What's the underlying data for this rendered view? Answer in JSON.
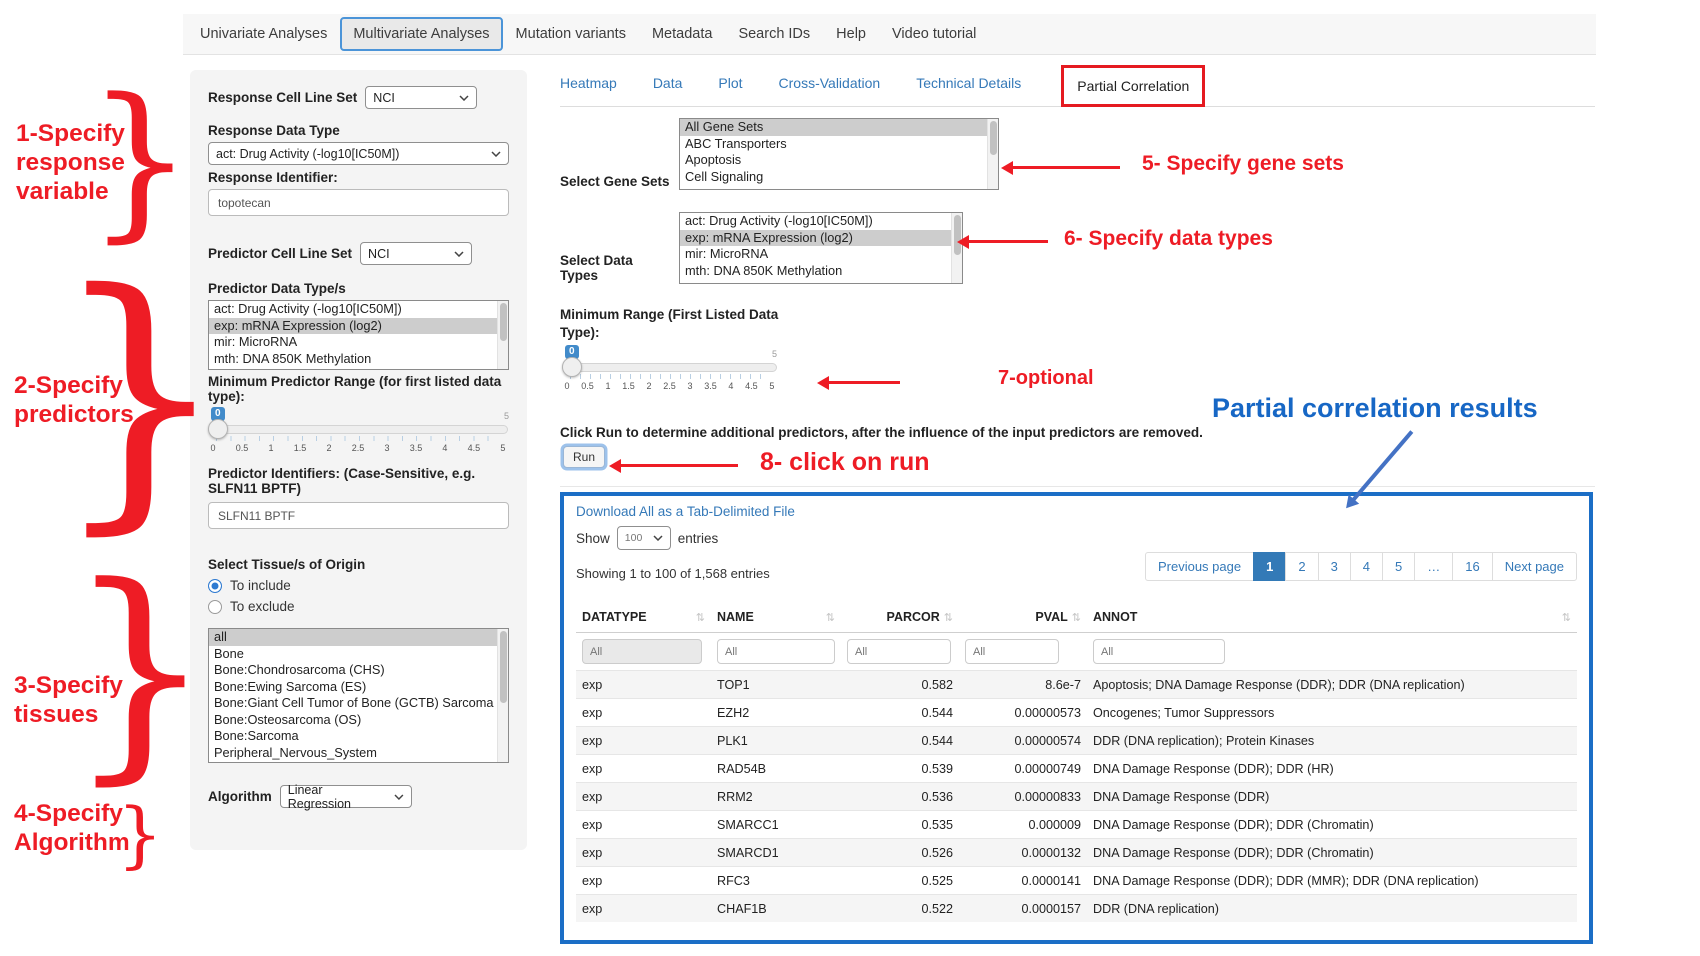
{
  "topnav": {
    "items": [
      {
        "label": "Univariate Analyses",
        "active": false
      },
      {
        "label": "Multivariate Analyses",
        "active": true
      },
      {
        "label": "Mutation variants",
        "active": false
      },
      {
        "label": "Metadata",
        "active": false
      },
      {
        "label": "Search IDs",
        "active": false
      },
      {
        "label": "Help",
        "active": false
      },
      {
        "label": "Video tutorial",
        "active": false
      }
    ]
  },
  "slider_ticks": [
    "0",
    "0.5",
    "1",
    "1.5",
    "2",
    "2.5",
    "3",
    "3.5",
    "4",
    "4.5",
    "5"
  ],
  "sidebar": {
    "response_cell_line_set_label": "Response Cell Line Set",
    "response_cell_line_set_value": "NCI",
    "response_data_type_label": "Response Data Type",
    "response_data_type_value": "act: Drug Activity (-log10[IC50M])",
    "response_identifier_label": "Response Identifier:",
    "response_identifier_value": "topotecan",
    "predictor_cell_line_set_label": "Predictor Cell Line Set",
    "predictor_cell_line_set_value": "NCI",
    "predictor_data_types_label": "Predictor Data Type/s",
    "predictor_data_types_options": [
      "act: Drug Activity (-log10[IC50M])",
      "exp: mRNA Expression (log2)",
      "mir: MicroRNA",
      "mth: DNA 850K Methylation"
    ],
    "predictor_data_types_selected_index": 1,
    "min_predictor_range_label": "Minimum Predictor Range (for first listed data type):",
    "slider": {
      "value": "0",
      "max": "5"
    },
    "predictor_identifiers_label": "Predictor Identifiers: (Case-Sensitive, e.g. SLFN11 BPTF)",
    "predictor_identifiers_value": "SLFN11 BPTF",
    "tissue_label": "Select Tissue/s of Origin",
    "tissue_radio_include": "To include",
    "tissue_radio_exclude": "To exclude",
    "tissue_options": [
      "all",
      "Bone",
      "Bone:Chondrosarcoma (CHS)",
      "Bone:Ewing Sarcoma (ES)",
      "Bone:Giant Cell Tumor of Bone (GCTB) Sarcoma",
      "Bone:Osteosarcoma (OS)",
      "Bone:Sarcoma",
      "Peripheral_Nervous_System"
    ],
    "tissue_selected_index": 0,
    "algorithm_label": "Algorithm",
    "algorithm_value": "Linear Regression"
  },
  "main": {
    "tabs": [
      "Heatmap",
      "Data",
      "Plot",
      "Cross-Validation",
      "Technical Details"
    ],
    "partial_correlation_tab": "Partial Correlation",
    "gene_sets_label": "Select Gene Sets",
    "gene_sets_options": [
      "All Gene Sets",
      "ABC Transporters",
      "Apoptosis",
      "Cell Signaling"
    ],
    "gene_sets_selected_index": 0,
    "data_types_label": "Select Data Types",
    "data_types_options": [
      "act: Drug Activity (-log10[IC50M])",
      "exp: mRNA Expression (log2)",
      "mir: MicroRNA",
      "mth: DNA 850K Methylation"
    ],
    "data_types_selected_index": 1,
    "min_range_label": "Minimum Range (First Listed Data Type):",
    "slider": {
      "value": "0",
      "max": "5"
    },
    "run_instruction": "Click Run to determine additional predictors, after the influence of the input predictors are removed.",
    "run_button": "Run"
  },
  "results": {
    "download_link": "Download All as a Tab-Delimited File",
    "show_label": "Show",
    "show_value": "100",
    "entries_label": "entries",
    "showing_text": "Showing 1 to 100 of 1,568 entries",
    "pagination": [
      {
        "label": "Previous page",
        "active": false
      },
      {
        "label": "1",
        "active": true
      },
      {
        "label": "2",
        "active": false
      },
      {
        "label": "3",
        "active": false
      },
      {
        "label": "4",
        "active": false
      },
      {
        "label": "5",
        "active": false
      },
      {
        "label": "…",
        "active": false
      },
      {
        "label": "16",
        "active": false
      },
      {
        "label": "Next page",
        "active": false
      }
    ],
    "table": {
      "columns": [
        "DATATYPE",
        "NAME",
        "PARCOR",
        "PVAL",
        "ANNOT"
      ],
      "filter_placeholder": "All",
      "rows": [
        [
          "exp",
          "TOP1",
          "0.582",
          "8.6e-7",
          "Apoptosis; DNA Damage Response (DDR); DDR (DNA replication)"
        ],
        [
          "exp",
          "EZH2",
          "0.544",
          "0.00000573",
          "Oncogenes; Tumor Suppressors"
        ],
        [
          "exp",
          "PLK1",
          "0.544",
          "0.00000574",
          "DDR (DNA replication); Protein Kinases"
        ],
        [
          "exp",
          "RAD54B",
          "0.539",
          "0.00000749",
          "DNA Damage Response (DDR); DDR (HR)"
        ],
        [
          "exp",
          "RRM2",
          "0.536",
          "0.00000833",
          "DNA Damage Response (DDR)"
        ],
        [
          "exp",
          "SMARCC1",
          "0.535",
          "0.000009",
          "DNA Damage Response (DDR); DDR (Chromatin)"
        ],
        [
          "exp",
          "SMARCD1",
          "0.526",
          "0.0000132",
          "DNA Damage Response (DDR); DDR (Chromatin)"
        ],
        [
          "exp",
          "RFC3",
          "0.525",
          "0.0000141",
          "DNA Damage Response (DDR); DDR (MMR); DDR (DNA replication)"
        ],
        [
          "exp",
          "CHAF1B",
          "0.522",
          "0.0000157",
          "DDR (DNA replication)"
        ]
      ]
    }
  },
  "annotations": {
    "a1": "1-Specify\nresponse\nvariable",
    "a2": "2-Specify\npredictors",
    "a3": "3-Specify\ntissues",
    "a4": "4-Specify\nAlgorithm",
    "a5": "5- Specify gene sets",
    "a6": "6- Specify data types",
    "a7": "7-optional",
    "a8": "8- click on run",
    "results_title": "Partial correlation results",
    "red_color": "#ee1c25",
    "blue_color": "#1767c5"
  }
}
